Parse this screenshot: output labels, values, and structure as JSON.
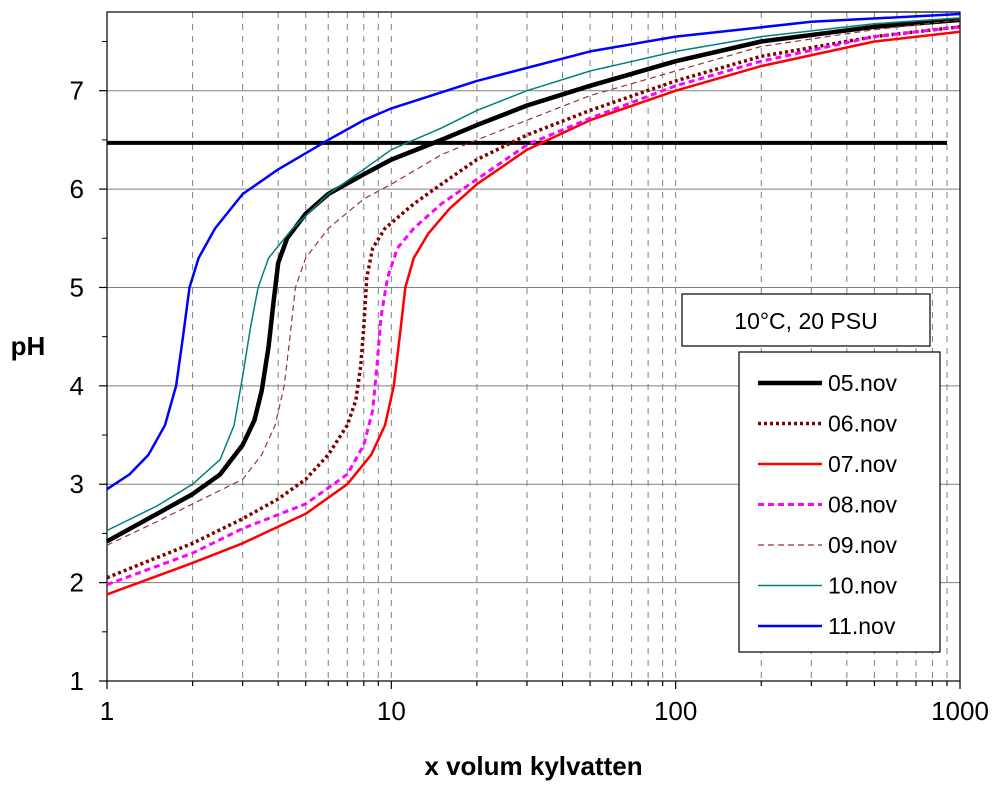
{
  "chart_data": {
    "type": "line",
    "title": "",
    "xlabel": "x volum kylvatten",
    "ylabel": "pH",
    "x_scale": "log",
    "xlim": [
      1,
      1000
    ],
    "ylim": [
      1,
      7.8
    ],
    "x_ticks": [
      1,
      10,
      100,
      1000
    ],
    "x_tick_labels": [
      "1",
      "10",
      "100",
      "1000"
    ],
    "y_ticks": [
      1,
      2,
      3,
      4,
      5,
      6,
      7
    ],
    "y_tick_labels": [
      "1",
      "2",
      "3",
      "4",
      "5",
      "6",
      "7"
    ],
    "grid": {
      "major_horizontal": true,
      "minor_vertical_dashed": true
    },
    "legend_position": "right",
    "annotation": "10°C, 20 PSU",
    "reference_line": {
      "y": 6.47,
      "x_range": [
        1,
        900
      ],
      "color": "#000000"
    },
    "series": [
      {
        "name": "05.nov",
        "color": "#000000",
        "style": "solid-thick",
        "points": [
          [
            1,
            2.42
          ],
          [
            1.5,
            2.7
          ],
          [
            2,
            2.9
          ],
          [
            2.5,
            3.1
          ],
          [
            3,
            3.4
          ],
          [
            3.3,
            3.65
          ],
          [
            3.5,
            3.95
          ],
          [
            3.7,
            4.4
          ],
          [
            3.85,
            4.85
          ],
          [
            4,
            5.25
          ],
          [
            4.3,
            5.5
          ],
          [
            5,
            5.75
          ],
          [
            6,
            5.95
          ],
          [
            8,
            6.15
          ],
          [
            10,
            6.3
          ],
          [
            15,
            6.5
          ],
          [
            20,
            6.65
          ],
          [
            30,
            6.85
          ],
          [
            50,
            7.05
          ],
          [
            100,
            7.3
          ],
          [
            200,
            7.5
          ],
          [
            500,
            7.65
          ],
          [
            1000,
            7.72
          ]
        ]
      },
      {
        "name": "06.nov",
        "color": "#800000",
        "style": "dotted-thick",
        "points": [
          [
            1,
            2.05
          ],
          [
            2,
            2.4
          ],
          [
            3,
            2.65
          ],
          [
            4,
            2.85
          ],
          [
            5,
            3.05
          ],
          [
            6,
            3.3
          ],
          [
            7,
            3.6
          ],
          [
            7.5,
            3.85
          ],
          [
            7.8,
            4.2
          ],
          [
            8,
            4.6
          ],
          [
            8.2,
            5.1
          ],
          [
            8.6,
            5.4
          ],
          [
            9.5,
            5.6
          ],
          [
            12,
            5.85
          ],
          [
            15,
            6.05
          ],
          [
            20,
            6.3
          ],
          [
            30,
            6.55
          ],
          [
            50,
            6.8
          ],
          [
            100,
            7.1
          ],
          [
            200,
            7.35
          ],
          [
            500,
            7.55
          ],
          [
            1000,
            7.65
          ]
        ]
      },
      {
        "name": "07.nov",
        "color": "#ff0000",
        "style": "solid",
        "points": [
          [
            1,
            1.88
          ],
          [
            2,
            2.2
          ],
          [
            3,
            2.4
          ],
          [
            5,
            2.7
          ],
          [
            7,
            3.0
          ],
          [
            8.5,
            3.3
          ],
          [
            9.5,
            3.6
          ],
          [
            10.2,
            4.0
          ],
          [
            10.7,
            4.5
          ],
          [
            11.2,
            5.0
          ],
          [
            12,
            5.3
          ],
          [
            13.5,
            5.55
          ],
          [
            16,
            5.8
          ],
          [
            20,
            6.05
          ],
          [
            30,
            6.4
          ],
          [
            50,
            6.7
          ],
          [
            100,
            7.0
          ],
          [
            200,
            7.25
          ],
          [
            500,
            7.5
          ],
          [
            1000,
            7.6
          ]
        ]
      },
      {
        "name": "08.nov",
        "color": "#ff00ff",
        "style": "dashed",
        "points": [
          [
            1,
            1.98
          ],
          [
            2,
            2.3
          ],
          [
            3,
            2.55
          ],
          [
            5,
            2.8
          ],
          [
            7,
            3.1
          ],
          [
            8,
            3.4
          ],
          [
            8.6,
            3.75
          ],
          [
            8.9,
            4.2
          ],
          [
            9.2,
            4.7
          ],
          [
            9.7,
            5.1
          ],
          [
            10.5,
            5.4
          ],
          [
            12,
            5.6
          ],
          [
            15,
            5.85
          ],
          [
            20,
            6.1
          ],
          [
            30,
            6.45
          ],
          [
            50,
            6.72
          ],
          [
            100,
            7.05
          ],
          [
            200,
            7.3
          ],
          [
            500,
            7.55
          ],
          [
            1000,
            7.65
          ]
        ]
      },
      {
        "name": "09.nov",
        "color": "#993333",
        "style": "dashed-thin",
        "points": [
          [
            1,
            2.38
          ],
          [
            1.5,
            2.62
          ],
          [
            2,
            2.8
          ],
          [
            3,
            3.05
          ],
          [
            3.5,
            3.3
          ],
          [
            3.9,
            3.6
          ],
          [
            4.2,
            4.0
          ],
          [
            4.4,
            4.5
          ],
          [
            4.6,
            5.0
          ],
          [
            5,
            5.3
          ],
          [
            6,
            5.6
          ],
          [
            8,
            5.9
          ],
          [
            10,
            6.05
          ],
          [
            15,
            6.35
          ],
          [
            20,
            6.5
          ],
          [
            30,
            6.7
          ],
          [
            50,
            6.95
          ],
          [
            100,
            7.2
          ],
          [
            200,
            7.45
          ],
          [
            500,
            7.62
          ],
          [
            1000,
            7.72
          ]
        ]
      },
      {
        "name": "10.nov",
        "color": "#008080",
        "style": "solid-thin",
        "points": [
          [
            1,
            2.53
          ],
          [
            1.5,
            2.78
          ],
          [
            2,
            3.0
          ],
          [
            2.5,
            3.25
          ],
          [
            2.8,
            3.6
          ],
          [
            3,
            4.1
          ],
          [
            3.2,
            4.6
          ],
          [
            3.4,
            5.0
          ],
          [
            3.7,
            5.3
          ],
          [
            4.5,
            5.6
          ],
          [
            6,
            5.95
          ],
          [
            8,
            6.2
          ],
          [
            10,
            6.4
          ],
          [
            15,
            6.62
          ],
          [
            20,
            6.8
          ],
          [
            30,
            7.0
          ],
          [
            50,
            7.2
          ],
          [
            100,
            7.4
          ],
          [
            200,
            7.55
          ],
          [
            500,
            7.68
          ],
          [
            1000,
            7.74
          ]
        ]
      },
      {
        "name": "11.nov",
        "color": "#0000ff",
        "style": "solid",
        "points": [
          [
            1,
            2.95
          ],
          [
            1.2,
            3.1
          ],
          [
            1.4,
            3.3
          ],
          [
            1.6,
            3.6
          ],
          [
            1.75,
            4.0
          ],
          [
            1.85,
            4.5
          ],
          [
            1.95,
            5.0
          ],
          [
            2.1,
            5.3
          ],
          [
            2.4,
            5.6
          ],
          [
            3,
            5.95
          ],
          [
            4,
            6.2
          ],
          [
            6,
            6.5
          ],
          [
            8,
            6.7
          ],
          [
            10,
            6.82
          ],
          [
            20,
            7.1
          ],
          [
            50,
            7.4
          ],
          [
            100,
            7.55
          ],
          [
            300,
            7.7
          ],
          [
            1000,
            7.78
          ]
        ]
      }
    ]
  }
}
